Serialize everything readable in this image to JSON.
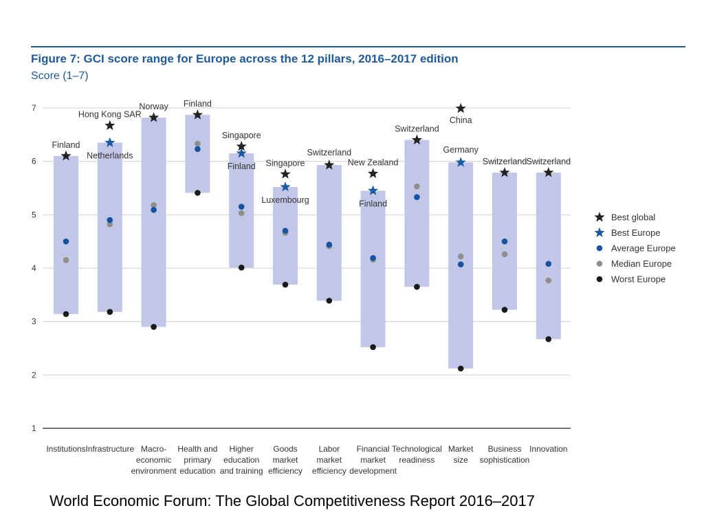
{
  "figure": {
    "title": "Figure 7: GCI score range for Europe across the 12 pillars, 2016–2017 edition",
    "subtitle": "Score (1–7)"
  },
  "caption": "World Economic Forum: The Global Competitiveness Report 2016–2017",
  "colors": {
    "band": "#c2c7e7",
    "best_global": "#222222",
    "best_europe": "#1e5aa0",
    "average_europe": "#1552a0",
    "median_europe": "#8e8e8e",
    "worst_europe": "#1a1a1a",
    "grid": "#cfcfcf",
    "axis_text": "#333333"
  },
  "chart_data": {
    "type": "range",
    "title": "Figure 7: GCI score range for Europe across the 12 pillars, 2016–2017 edition",
    "ylabel": "Score (1–7)",
    "ylim": [
      1,
      7
    ],
    "yticks": [
      1,
      2,
      3,
      4,
      5,
      6,
      7
    ],
    "grid": true,
    "legend_position": "right",
    "legend": [
      {
        "key": "best_global",
        "label": "Best global",
        "marker": "star"
      },
      {
        "key": "best_europe",
        "label": "Best Europe",
        "marker": "star"
      },
      {
        "key": "average_europe",
        "label": "Average Europe",
        "marker": "dot"
      },
      {
        "key": "median_europe",
        "label": "Median Europe",
        "marker": "dot"
      },
      {
        "key": "worst_europe",
        "label": "Worst Europe",
        "marker": "dot"
      }
    ],
    "pillars": [
      {
        "lines": [
          "Institutions"
        ],
        "best_global": 6.1,
        "best_global_label": "Finland",
        "best_europe": 6.1,
        "best_europe_label": "",
        "average_europe": 4.5,
        "median_europe": 4.15,
        "worst_europe": 3.14
      },
      {
        "lines": [
          "Infrastructure"
        ],
        "best_global": 6.67,
        "best_global_label": "Hong Kong SAR",
        "best_europe": 6.35,
        "best_europe_label": "Netherlands",
        "average_europe": 4.9,
        "median_europe": 4.82,
        "worst_europe": 3.18
      },
      {
        "lines": [
          "Macro-",
          "economic",
          "environment"
        ],
        "best_global": 6.82,
        "best_global_label": "Norway",
        "best_europe": 6.82,
        "best_europe_label": "",
        "average_europe": 5.09,
        "median_europe": 5.18,
        "worst_europe": 2.9
      },
      {
        "lines": [
          "Health and",
          "primary",
          "education"
        ],
        "best_global": 6.87,
        "best_global_label": "Finland",
        "best_europe": 6.87,
        "best_europe_label": "",
        "average_europe": 6.23,
        "median_europe": 6.33,
        "worst_europe": 5.41
      },
      {
        "lines": [
          "Higher",
          "education",
          "and training"
        ],
        "best_global": 6.28,
        "best_global_label": "Singapore",
        "best_europe": 6.15,
        "best_europe_label": "Finland",
        "average_europe": 5.15,
        "median_europe": 5.03,
        "worst_europe": 4.01
      },
      {
        "lines": [
          "Goods",
          "market",
          "efficiency"
        ],
        "best_global": 5.76,
        "best_global_label": "Singapore",
        "best_europe": 5.52,
        "best_europe_label": "Luxembourg",
        "average_europe": 4.7,
        "median_europe": 4.66,
        "worst_europe": 3.69
      },
      {
        "lines": [
          "Labor",
          "market",
          "efficiency"
        ],
        "best_global": 5.93,
        "best_global_label": "Switzerland",
        "best_europe": 5.93,
        "best_europe_label": "",
        "average_europe": 4.44,
        "median_europe": 4.41,
        "worst_europe": 3.39
      },
      {
        "lines": [
          "Financial",
          "market",
          "development"
        ],
        "best_global": 5.77,
        "best_global_label": "New Zealand",
        "best_europe": 5.45,
        "best_europe_label": "Finland",
        "average_europe": 4.19,
        "median_europe": 4.16,
        "worst_europe": 2.52
      },
      {
        "lines": [
          "Technological",
          "readiness"
        ],
        "best_global": 6.4,
        "best_global_label": "Switzerland",
        "best_europe": 6.4,
        "best_europe_label": "",
        "average_europe": 5.33,
        "median_europe": 5.53,
        "worst_europe": 3.65
      },
      {
        "lines": [
          "Market",
          "size"
        ],
        "best_global": 6.99,
        "best_global_label": "China",
        "best_europe": 5.98,
        "best_europe_label": "Germany",
        "average_europe": 4.07,
        "median_europe": 4.22,
        "worst_europe": 2.12
      },
      {
        "lines": [
          "Business",
          "sophistication"
        ],
        "best_global": 5.79,
        "best_global_label": "Switzerland",
        "best_europe": 5.79,
        "best_europe_label": "",
        "average_europe": 4.5,
        "median_europe": 4.26,
        "worst_europe": 3.22
      },
      {
        "lines": [
          "Innovation"
        ],
        "best_global": 5.79,
        "best_global_label": "Switzerland",
        "best_europe": 5.79,
        "best_europe_label": "",
        "average_europe": 4.08,
        "median_europe": 3.77,
        "worst_europe": 2.67
      }
    ]
  }
}
